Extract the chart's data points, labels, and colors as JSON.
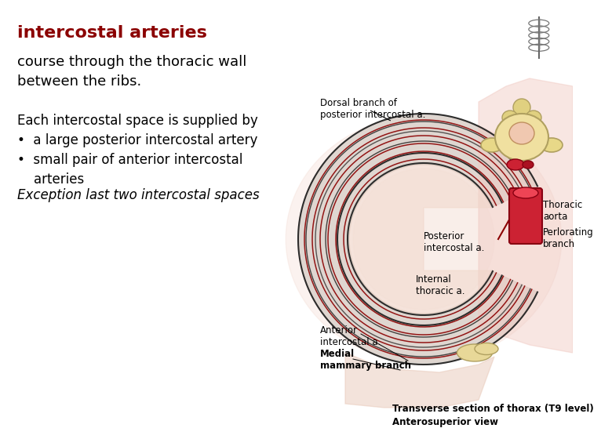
{
  "background_color": "#ffffff",
  "title": "intercostal arteries",
  "title_color": "#8B0000",
  "title_fontsize": 16,
  "body_text_1": "course through the thoracic wall\nbetween the ribs.",
  "body_text_1_fontsize": 13,
  "body_text_2": "Each intercostal space is supplied by",
  "body_text_2_fontsize": 12,
  "bullet_1": "•  a large posterior intercostal artery",
  "bullet_2": "•  small pair of anterior intercostal\n    arteries",
  "bullet_fontsize": 12,
  "exception_text": "Exception last two intercostal spaces",
  "exception_fontsize": 12,
  "diagram_labels": {
    "dorsal_branch": "Dorsal branch of\nposterior intercostal a.",
    "posterior": "Posterior\nintercostal a.",
    "internal_thoracic": "Internal\nthoracic a.",
    "anterior": "Anterior\nintercostal a.",
    "medial_mammary": "Medial\nmammary branch",
    "thoracic_aorta": "Thoracic\naorta",
    "perforating": "Perlorating\nbranch",
    "caption_1": "Transverse section of thorax (T9 level)",
    "caption_2": "Anterosuperior view"
  }
}
